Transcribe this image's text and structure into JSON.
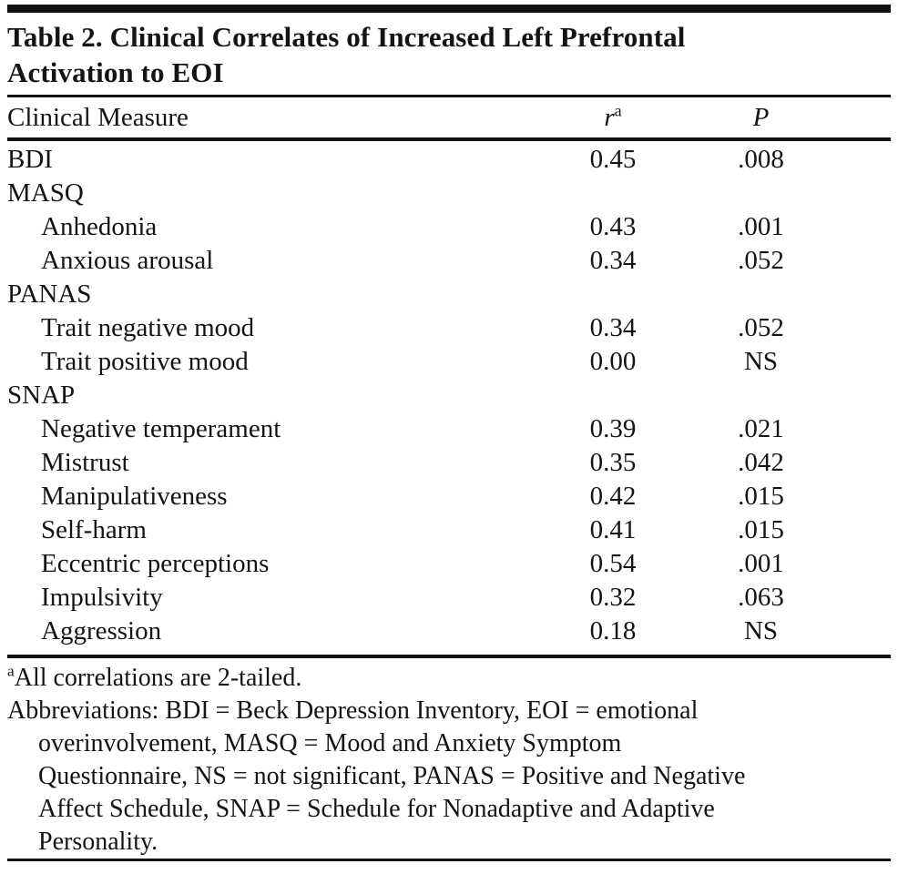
{
  "title": {
    "line1": "Table 2. Clinical Correlates of Increased Left Prefrontal",
    "line2": "Activation to EOI"
  },
  "header": {
    "measure": "Clinical Measure",
    "r": "r",
    "r_sup": "a",
    "p": "P"
  },
  "table": {
    "rows": [
      {
        "label": "BDI",
        "r": "0.45",
        "p": ".008",
        "indent": false
      },
      {
        "label": "MASQ",
        "r": "",
        "p": "",
        "indent": false
      },
      {
        "label": "Anhedonia",
        "r": "0.43",
        "p": ".001",
        "indent": true
      },
      {
        "label": "Anxious arousal",
        "r": "0.34",
        "p": ".052",
        "indent": true
      },
      {
        "label": "PANAS",
        "r": "",
        "p": "",
        "indent": false
      },
      {
        "label": "Trait negative mood",
        "r": "0.34",
        "p": ".052",
        "indent": true
      },
      {
        "label": "Trait positive mood",
        "r": "0.00",
        "p": "NS",
        "indent": true
      },
      {
        "label": "SNAP",
        "r": "",
        "p": "",
        "indent": false
      },
      {
        "label": "Negative temperament",
        "r": "0.39",
        "p": ".021",
        "indent": true
      },
      {
        "label": "Mistrust",
        "r": "0.35",
        "p": ".042",
        "indent": true
      },
      {
        "label": "Manipulativeness",
        "r": "0.42",
        "p": ".015",
        "indent": true
      },
      {
        "label": "Self-harm",
        "r": "0.41",
        "p": ".015",
        "indent": true
      },
      {
        "label": "Eccentric perceptions",
        "r": "0.54",
        "p": ".001",
        "indent": true
      },
      {
        "label": "Impulsivity",
        "r": "0.32",
        "p": ".063",
        "indent": true
      },
      {
        "label": "Aggression",
        "r": "0.18",
        "p": "NS",
        "indent": true
      }
    ]
  },
  "footnotes": {
    "marker": "a",
    "note": "All correlations are 2-tailed.",
    "abbreviations_lines": [
      "Abbreviations: BDI = Beck Depression Inventory, EOI = emotional",
      "overinvolvement, MASQ = Mood and Anxiety Symptom",
      "Questionnaire, NS = not significant, PANAS = Positive and Negative",
      "Affect Schedule, SNAP = Schedule for Nonadaptive and Adaptive",
      "Personality."
    ]
  },
  "colors": {
    "background": "#ffffff",
    "text": "#141414",
    "rule": "#101010"
  }
}
